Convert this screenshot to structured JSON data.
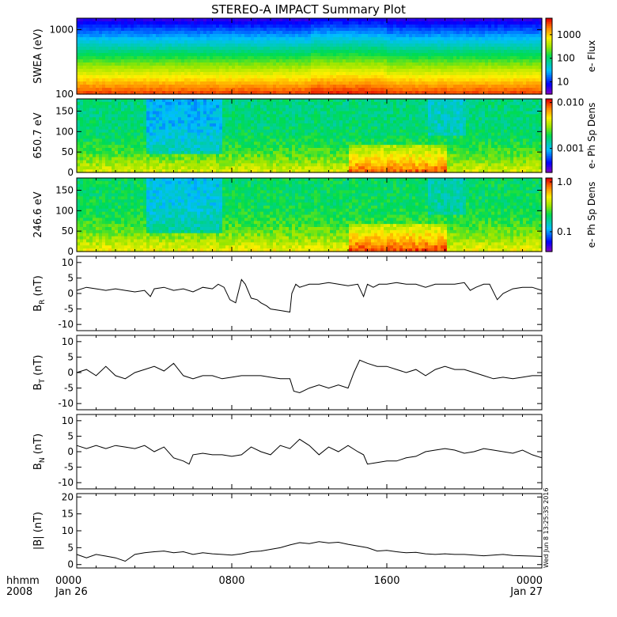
{
  "title": "STEREO-A IMPACT Summary Plot",
  "colors": {
    "line": "#000000",
    "frame": "#000000",
    "background": "#ffffff"
  },
  "time_axis": {
    "row_label_1": "hhmm",
    "row_label_2": "2008",
    "ticks": [
      {
        "time": "0000",
        "date": "Jan 26",
        "hour": 0
      },
      {
        "time": "0800",
        "date": "",
        "hour": 8
      },
      {
        "time": "1600",
        "date": "",
        "hour": 16
      },
      {
        "time": "0000",
        "date": "Jan 27",
        "hour": 24
      }
    ],
    "range_hours": [
      0,
      24
    ]
  },
  "timestamp": "Wed Jun 8 13:25:35 2016",
  "chart_data": [
    {
      "type": "heatmap",
      "panel": "swea",
      "ylabel": "SWEA (eV)",
      "yscale": "log",
      "ylim": [
        100,
        1500
      ],
      "yticks": [
        100,
        1000
      ],
      "yticklabels": [
        "100",
        "1000"
      ],
      "colorbar_label": "e- Flux",
      "colorbar_scale": "log",
      "colorbar_ticks": [
        "10",
        "100",
        "1000"
      ],
      "colorbar_tick_values": [
        10,
        100,
        1000
      ],
      "colorbar_range": [
        3,
        5000
      ],
      "description_levels": [
        {
          "energy": 1500,
          "level": 0.05
        },
        {
          "energy": 1000,
          "level": 0.22
        },
        {
          "energy": 600,
          "level": 0.45
        },
        {
          "energy": 300,
          "level": 0.7
        },
        {
          "energy": 150,
          "level": 0.88
        },
        {
          "energy": 100,
          "level": 0.95
        }
      ]
    },
    {
      "type": "heatmap",
      "panel": "pad650",
      "ylabel": "650.7 eV",
      "ylim": [
        0,
        180
      ],
      "yticks": [
        0,
        50,
        100,
        150
      ],
      "colorbar_label": "e- Ph Sp Dens",
      "colorbar_scale": "log",
      "colorbar_ticks": [
        "0.001",
        "0.010"
      ],
      "colorbar_tick_values": [
        0.001,
        0.01
      ],
      "colorbar_range": [
        0.0003,
        0.012
      ]
    },
    {
      "type": "heatmap",
      "panel": "pad246",
      "ylabel": "246.6 eV",
      "ylim": [
        0,
        180
      ],
      "yticks": [
        0,
        50,
        100,
        150
      ],
      "colorbar_label": "e- Ph Sp Dens",
      "colorbar_scale": "log",
      "colorbar_ticks": [
        "0.1",
        "1.0"
      ],
      "colorbar_tick_values": [
        0.1,
        1.0
      ],
      "colorbar_range": [
        0.04,
        1.2
      ]
    },
    {
      "type": "line",
      "panel": "br",
      "ylabel": "B",
      "ylabel_sub": "R",
      "ylabel_unit": " (nT)",
      "ylim": [
        -12,
        12
      ],
      "yticks": [
        -10,
        -5,
        0,
        5,
        10
      ],
      "x": [
        0,
        0.5,
        1,
        1.5,
        2,
        2.5,
        3,
        3.5,
        3.8,
        4,
        4.5,
        5,
        5.5,
        6,
        6.5,
        7,
        7.3,
        7.6,
        7.9,
        8.2,
        8.5,
        8.7,
        9,
        9.3,
        9.5,
        9.8,
        10,
        10.5,
        11,
        11.1,
        11.3,
        11.5,
        12,
        12.5,
        13,
        13.5,
        14,
        14.5,
        14.8,
        15,
        15.3,
        15.6,
        16,
        16.5,
        17,
        17.5,
        18,
        18.5,
        19,
        19.5,
        20,
        20.3,
        20.6,
        21,
        21.3,
        21.7,
        22,
        22.5,
        23,
        23.5,
        24
      ],
      "y": [
        1,
        2,
        1.5,
        1,
        1.5,
        1,
        0.5,
        1,
        -1,
        1.5,
        2,
        1,
        1.5,
        0.5,
        2,
        1.5,
        3,
        2,
        -2,
        -3,
        4.5,
        3,
        -1.5,
        -2,
        -3,
        -4,
        -5,
        -5.5,
        -6,
        0,
        3,
        2,
        3,
        3,
        3.5,
        3,
        2.5,
        3,
        -1,
        3,
        2,
        3,
        3,
        3.5,
        3,
        3,
        2,
        3,
        3,
        3,
        3.5,
        1,
        2,
        3,
        3,
        -2,
        0,
        1.5,
        2,
        2,
        1
      ]
    },
    {
      "type": "line",
      "panel": "bt",
      "ylabel": "B",
      "ylabel_sub": "T",
      "ylabel_unit": " (nT)",
      "ylim": [
        -12,
        12
      ],
      "yticks": [
        -10,
        -5,
        0,
        5,
        10
      ],
      "x": [
        0,
        0.5,
        1,
        1.5,
        2,
        2.5,
        3,
        3.5,
        4,
        4.5,
        5,
        5.5,
        6,
        6.5,
        7,
        7.5,
        8,
        8.5,
        9,
        9.5,
        10,
        10.5,
        11,
        11.2,
        11.5,
        12,
        12.5,
        13,
        13.5,
        14,
        14.3,
        14.6,
        15,
        15.5,
        16,
        16.5,
        17,
        17.5,
        18,
        18.5,
        19,
        19.5,
        20,
        20.5,
        21,
        21.5,
        22,
        22.5,
        23,
        23.5,
        24
      ],
      "y": [
        0,
        1,
        -1,
        2,
        -1,
        -2,
        0,
        1,
        2,
        0.5,
        3,
        -1,
        -2,
        -1,
        -1,
        -2,
        -1.5,
        -1,
        -1,
        -1,
        -1.5,
        -2,
        -2,
        -6,
        -6.5,
        -5,
        -4,
        -5,
        -4,
        -5,
        0,
        4,
        3,
        2,
        2,
        1,
        0,
        1,
        -1,
        1,
        2,
        1,
        1,
        0,
        -1,
        -2,
        -1.5,
        -2,
        -1.5,
        -1,
        -1
      ]
    },
    {
      "type": "line",
      "panel": "bn",
      "ylabel": "B",
      "ylabel_sub": "N",
      "ylabel_unit": " (nT)",
      "ylim": [
        -12,
        12
      ],
      "yticks": [
        -10,
        -5,
        0,
        5,
        10
      ],
      "x": [
        0,
        0.5,
        1,
        1.5,
        2,
        2.5,
        3,
        3.5,
        4,
        4.5,
        5,
        5.5,
        5.8,
        6,
        6.5,
        7,
        7.5,
        8,
        8.5,
        9,
        9.5,
        10,
        10.5,
        11,
        11.5,
        12,
        12.5,
        13,
        13.5,
        14,
        14.5,
        14.8,
        15,
        15.5,
        16,
        16.5,
        17,
        17.5,
        18,
        18.5,
        19,
        19.5,
        20,
        20.5,
        21,
        21.5,
        22,
        22.5,
        23,
        23.5,
        24
      ],
      "y": [
        2,
        1,
        2,
        1,
        2,
        1.5,
        1,
        2,
        0,
        1.5,
        -2,
        -3,
        -4,
        -1,
        -0.5,
        -1,
        -1,
        -1.5,
        -1,
        1.5,
        0,
        -1,
        2,
        1,
        4,
        2,
        -1,
        1.5,
        0,
        2,
        0,
        -1,
        -4,
        -3.5,
        -3,
        -3,
        -2,
        -1.5,
        0,
        0.5,
        1,
        0.5,
        -0.5,
        0,
        1,
        0.5,
        0,
        -0.5,
        0.5,
        -1,
        -2
      ]
    },
    {
      "type": "line",
      "panel": "bmag",
      "ylabel": "|B| (nT)",
      "ylim": [
        -1,
        21
      ],
      "yticks": [
        0,
        5,
        10,
        15,
        20
      ],
      "x": [
        0,
        0.5,
        1,
        1.5,
        2,
        2.5,
        3,
        3.5,
        4,
        4.5,
        5,
        5.5,
        6,
        6.5,
        7,
        7.5,
        8,
        8.5,
        9,
        9.5,
        10,
        10.5,
        11,
        11.5,
        12,
        12.5,
        13,
        13.5,
        14,
        14.5,
        15,
        15.5,
        16,
        16.5,
        17,
        17.5,
        18,
        18.5,
        19,
        19.5,
        20,
        20.5,
        21,
        21.5,
        22,
        22.5,
        23,
        23.5,
        24
      ],
      "y": [
        3,
        2,
        3,
        2.5,
        2,
        1,
        3,
        3.5,
        3.8,
        4,
        3.5,
        3.8,
        3,
        3.5,
        3.2,
        3,
        2.8,
        3.2,
        3.8,
        4,
        4.5,
        5,
        5.8,
        6.5,
        6.2,
        6.8,
        6.4,
        6.6,
        6,
        5.5,
        5,
        4,
        4.2,
        3.8,
        3.5,
        3.6,
        3.2,
        3,
        3.2,
        3,
        3,
        2.8,
        2.6,
        2.8,
        3,
        2.7,
        2.6,
        2.5,
        2.4
      ]
    }
  ]
}
